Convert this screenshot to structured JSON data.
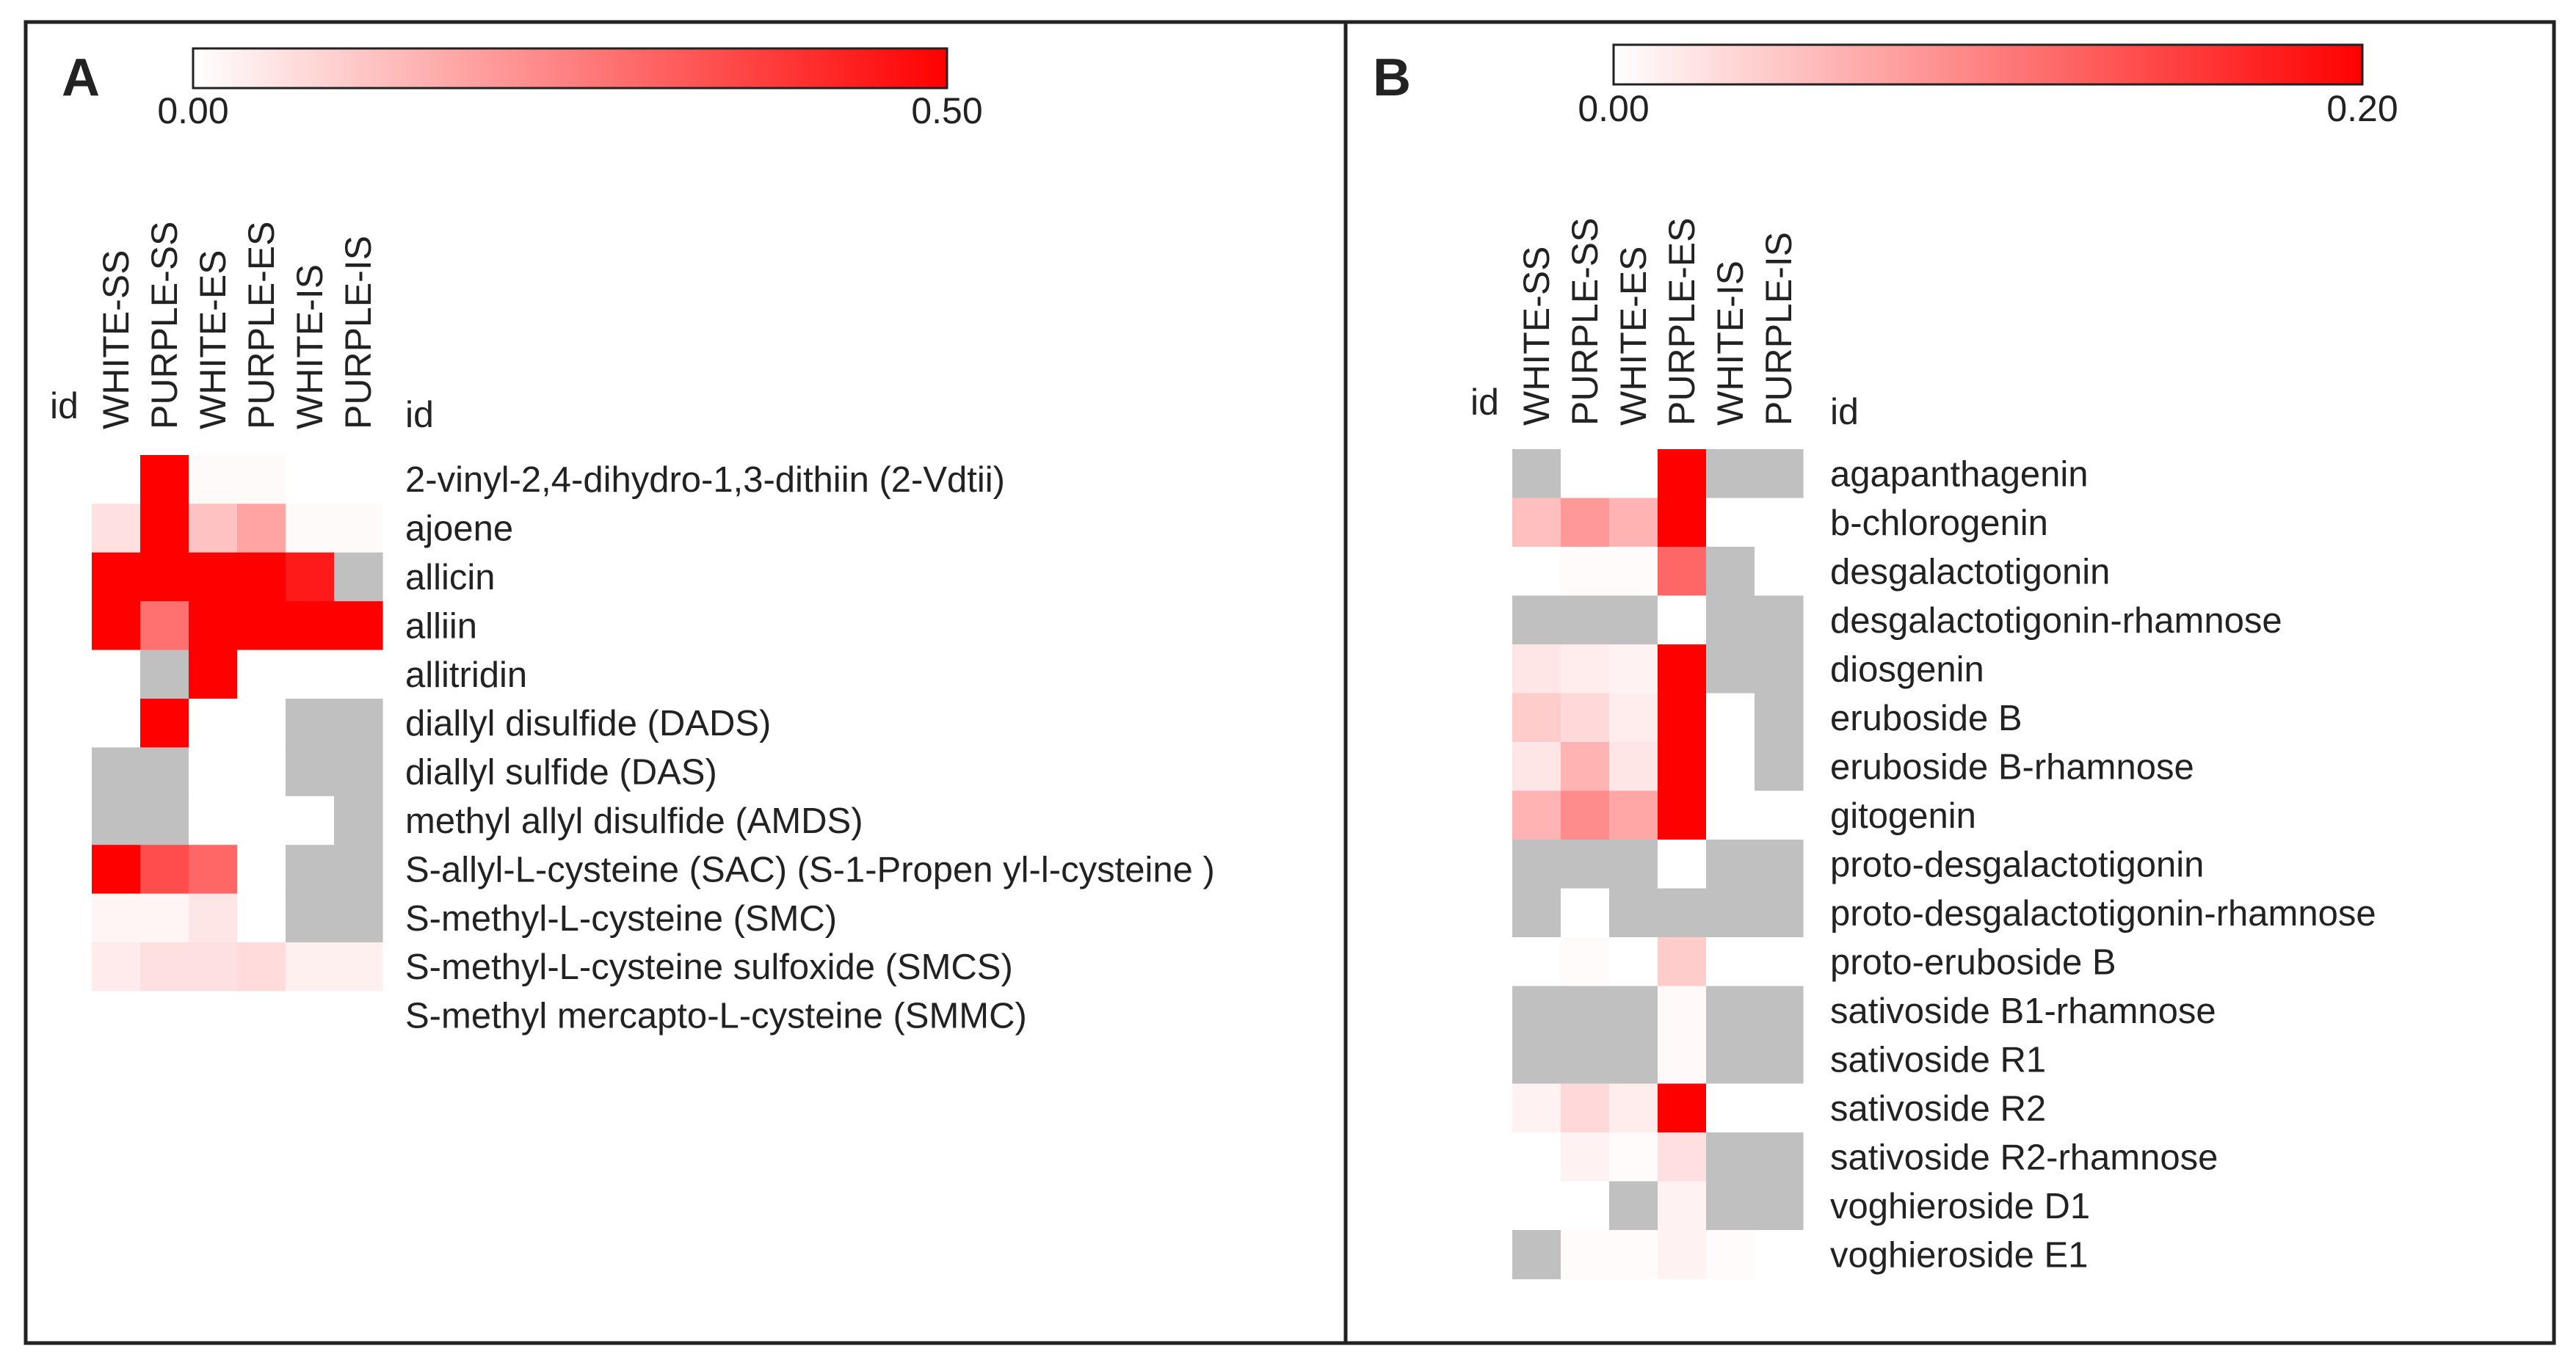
{
  "chart_data": [
    {
      "type": "heatmap",
      "panel": "A",
      "colorbar": {
        "min": 0.0,
        "max": 0.5,
        "min_label": "0.00",
        "max_label": "0.50",
        "low_color": "#ffffff",
        "high_color": "#ff0000"
      },
      "na_color": "#c0c0c0",
      "row_header": "id",
      "col_header": "id",
      "columns": [
        "WHITE-SS",
        "PURPLE-SS",
        "WHITE-ES",
        "PURPLE-ES",
        "WHITE-IS",
        "PURPLE-IS"
      ],
      "rows": [
        "2-vinyl-2,4-dihydro-1,3-dithiin (2-Vdtii)",
        "ajoene",
        "allicin",
        "alliin",
        "allitridin",
        "diallyl disulfide (DADS)",
        "diallyl sulfide (DAS)",
        "methyl allyl disulfide (AMDS)",
        "S-allyl-L-cysteine (SAC) (S-1-Propen yl-l-cysteine )",
        "S-methyl-L-cysteine (SMC)",
        "S-methyl-L-cysteine sulfoxide (SMCS)",
        "S-methyl mercapto-L-cysteine (SMMC)"
      ],
      "values": [
        [
          0.0,
          0.5,
          0.01,
          0.01,
          0.0,
          0.0
        ],
        [
          0.06,
          0.5,
          0.12,
          0.18,
          0.01,
          0.01
        ],
        [
          0.5,
          0.5,
          0.5,
          0.5,
          0.45,
          null
        ],
        [
          0.5,
          0.28,
          0.5,
          0.5,
          0.5,
          0.5
        ],
        [
          0.0,
          null,
          0.5,
          0.0,
          0.0,
          0.0
        ],
        [
          0.0,
          0.5,
          0.0,
          0.0,
          null,
          null
        ],
        [
          null,
          null,
          0.0,
          0.0,
          null,
          null
        ],
        [
          null,
          null,
          0.0,
          0.0,
          0.0,
          null
        ],
        [
          0.5,
          0.35,
          0.3,
          0.0,
          null,
          null
        ],
        [
          0.02,
          0.02,
          0.05,
          0.0,
          null,
          null
        ],
        [
          0.04,
          0.06,
          0.06,
          0.07,
          0.03,
          0.03
        ],
        [
          0.0,
          0.0,
          0.0,
          0.0,
          0.0,
          0.0
        ]
      ]
    },
    {
      "type": "heatmap",
      "panel": "B",
      "colorbar": {
        "min": 0.0,
        "max": 0.2,
        "min_label": "0.00",
        "max_label": "0.20",
        "low_color": "#ffffff",
        "high_color": "#ff0000"
      },
      "na_color": "#c0c0c0",
      "row_header": "id",
      "col_header": "id",
      "columns": [
        "WHITE-SS",
        "PURPLE-SS",
        "WHITE-ES",
        "PURPLE-ES",
        "WHITE-IS",
        "PURPLE-IS"
      ],
      "rows": [
        "agapanthagenin",
        "b-chlorogenin",
        "desgalactotigonin",
        "desgalactotigonin-rhamnose",
        "diosgenin",
        "eruboside B",
        "eruboside B-rhamnose",
        "gitogenin",
        "proto-desgalactotigonin",
        "proto-desgalactotigonin-rhamnose",
        "proto-eruboside B",
        "sativoside B1-rhamnose",
        "sativoside R1",
        "sativoside R2",
        "sativoside R2-rhamnose",
        "voghieroside D1",
        "voghieroside E1"
      ],
      "values": [
        [
          null,
          0.0,
          0.0,
          0.2,
          null,
          null
        ],
        [
          0.05,
          0.08,
          0.06,
          0.2,
          0.0,
          0.0
        ],
        [
          0.0,
          0.003,
          0.003,
          0.12,
          null,
          0.0
        ],
        [
          null,
          null,
          null,
          0.0,
          null,
          null
        ],
        [
          0.02,
          0.015,
          0.01,
          0.2,
          null,
          null
        ],
        [
          0.04,
          0.03,
          0.015,
          0.2,
          0.0,
          null
        ],
        [
          0.02,
          0.06,
          0.02,
          0.2,
          0.0,
          null
        ],
        [
          0.06,
          0.09,
          0.07,
          0.2,
          0.0,
          0.0
        ],
        [
          null,
          null,
          null,
          0.0,
          null,
          null
        ],
        [
          null,
          0.0,
          null,
          null,
          null,
          null
        ],
        [
          0.0,
          0.003,
          0.0,
          0.04,
          0.0,
          0.0
        ],
        [
          null,
          null,
          null,
          0.005,
          null,
          null
        ],
        [
          null,
          null,
          null,
          0.005,
          null,
          null
        ],
        [
          0.01,
          0.03,
          0.015,
          0.2,
          0.0,
          0.0
        ],
        [
          0.0,
          0.01,
          0.003,
          0.025,
          null,
          null
        ],
        [
          0.0,
          0.0,
          null,
          0.01,
          null,
          null
        ],
        [
          null,
          0.003,
          0.003,
          0.01,
          0.003,
          0.0
        ]
      ]
    }
  ]
}
